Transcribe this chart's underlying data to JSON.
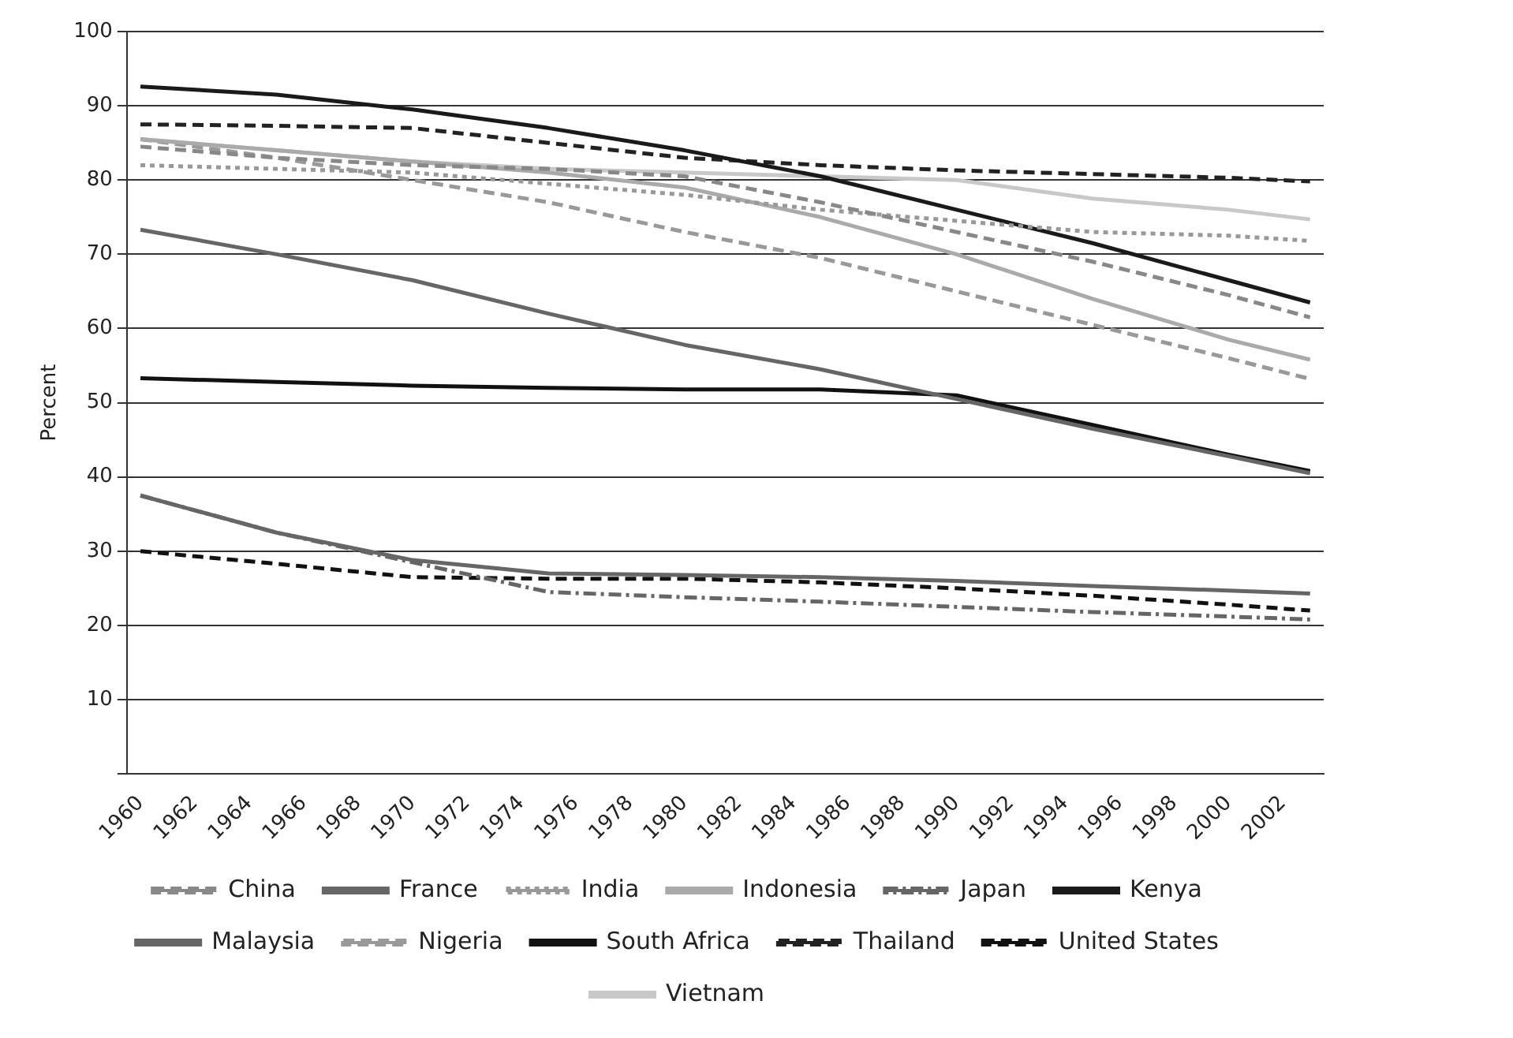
{
  "chart_data": {
    "type": "line",
    "ylabel": "Percent",
    "xlim": [
      1959.5,
      2003.5
    ],
    "xticks": [
      1960,
      1962,
      1964,
      1966,
      1968,
      1970,
      1972,
      1974,
      1976,
      1978,
      1980,
      1982,
      1984,
      1986,
      1988,
      1990,
      1992,
      1994,
      1996,
      1998,
      2000,
      2002
    ],
    "ylim": [
      0,
      100
    ],
    "yticks": [
      {
        "value": 0,
        "label": null
      },
      10,
      20,
      30,
      40,
      50,
      60,
      70,
      80,
      90,
      100
    ],
    "grid": "y",
    "legend": "bottom",
    "marker": "none",
    "x": [
      1960,
      1965,
      1970,
      1975,
      1980,
      1985,
      1990,
      1995,
      2000,
      2003
    ],
    "series": [
      {
        "name": "China",
        "color": "#888888",
        "line_style": "dashed",
        "values": [
          84.5,
          83,
          82,
          81.5,
          80.5,
          77,
          73,
          69,
          64.5,
          61.5
        ]
      },
      {
        "name": "France",
        "color": "#666666",
        "line_style": "solid",
        "values": [
          37.5,
          32.5,
          28.8,
          27,
          26.8,
          26.5,
          26,
          25.3,
          24.7,
          24.3
        ]
      },
      {
        "name": "India",
        "color": "#999999",
        "line_style": "dotted",
        "values": [
          82,
          81.5,
          81,
          79.5,
          78,
          76,
          74.5,
          73,
          72.5,
          71.8
        ]
      },
      {
        "name": "Indonesia",
        "color": "#aaaaaa",
        "line_style": "solid",
        "values": [
          85.5,
          84,
          82.5,
          81,
          79,
          75,
          70,
          64,
          58.5,
          55.8
        ]
      },
      {
        "name": "Japan",
        "color": "#666666",
        "line_style": "dashdot",
        "values": [
          37.5,
          32.5,
          28.5,
          24.5,
          23.8,
          23.2,
          22.5,
          21.8,
          21.2,
          20.8
        ]
      },
      {
        "name": "Kenya",
        "color": "#1a1a1a",
        "line_style": "solid",
        "values": [
          92.6,
          91.5,
          89.5,
          87,
          84,
          80.5,
          76,
          71.5,
          66.5,
          63.5
        ]
      },
      {
        "name": "Malaysia",
        "color": "#666666",
        "line_style": "solid",
        "values": [
          73.3,
          70,
          66.5,
          62,
          57.8,
          54.5,
          50.5,
          46.5,
          42.8,
          40.5
        ]
      },
      {
        "name": "Nigeria",
        "color": "#999999",
        "line_style": "dashed",
        "values": [
          85.5,
          83,
          80,
          77,
          73,
          69.5,
          65,
          60.5,
          56,
          53.2
        ]
      },
      {
        "name": "South Africa",
        "color": "#111111",
        "line_style": "solid",
        "values": [
          53.3,
          52.8,
          52.3,
          52,
          51.8,
          51.8,
          51,
          47,
          43,
          40.8
        ]
      },
      {
        "name": "Thailand",
        "color": "#222222",
        "line_style": "dashed",
        "values": [
          87.5,
          87.3,
          87,
          85,
          83,
          82,
          81.3,
          80.8,
          80.3,
          79.8
        ]
      },
      {
        "name": "United States",
        "color": "#111111",
        "line_style": "dashed",
        "values": [
          30,
          28.3,
          26.5,
          26.3,
          26.3,
          25.8,
          25,
          24,
          22.8,
          22
        ]
      },
      {
        "name": "Vietnam",
        "color": "#c8c8c8",
        "line_style": "solid",
        "values": [
          85.5,
          84,
          82.5,
          81.5,
          81,
          80.5,
          80,
          77.5,
          76,
          74.7
        ]
      }
    ]
  }
}
